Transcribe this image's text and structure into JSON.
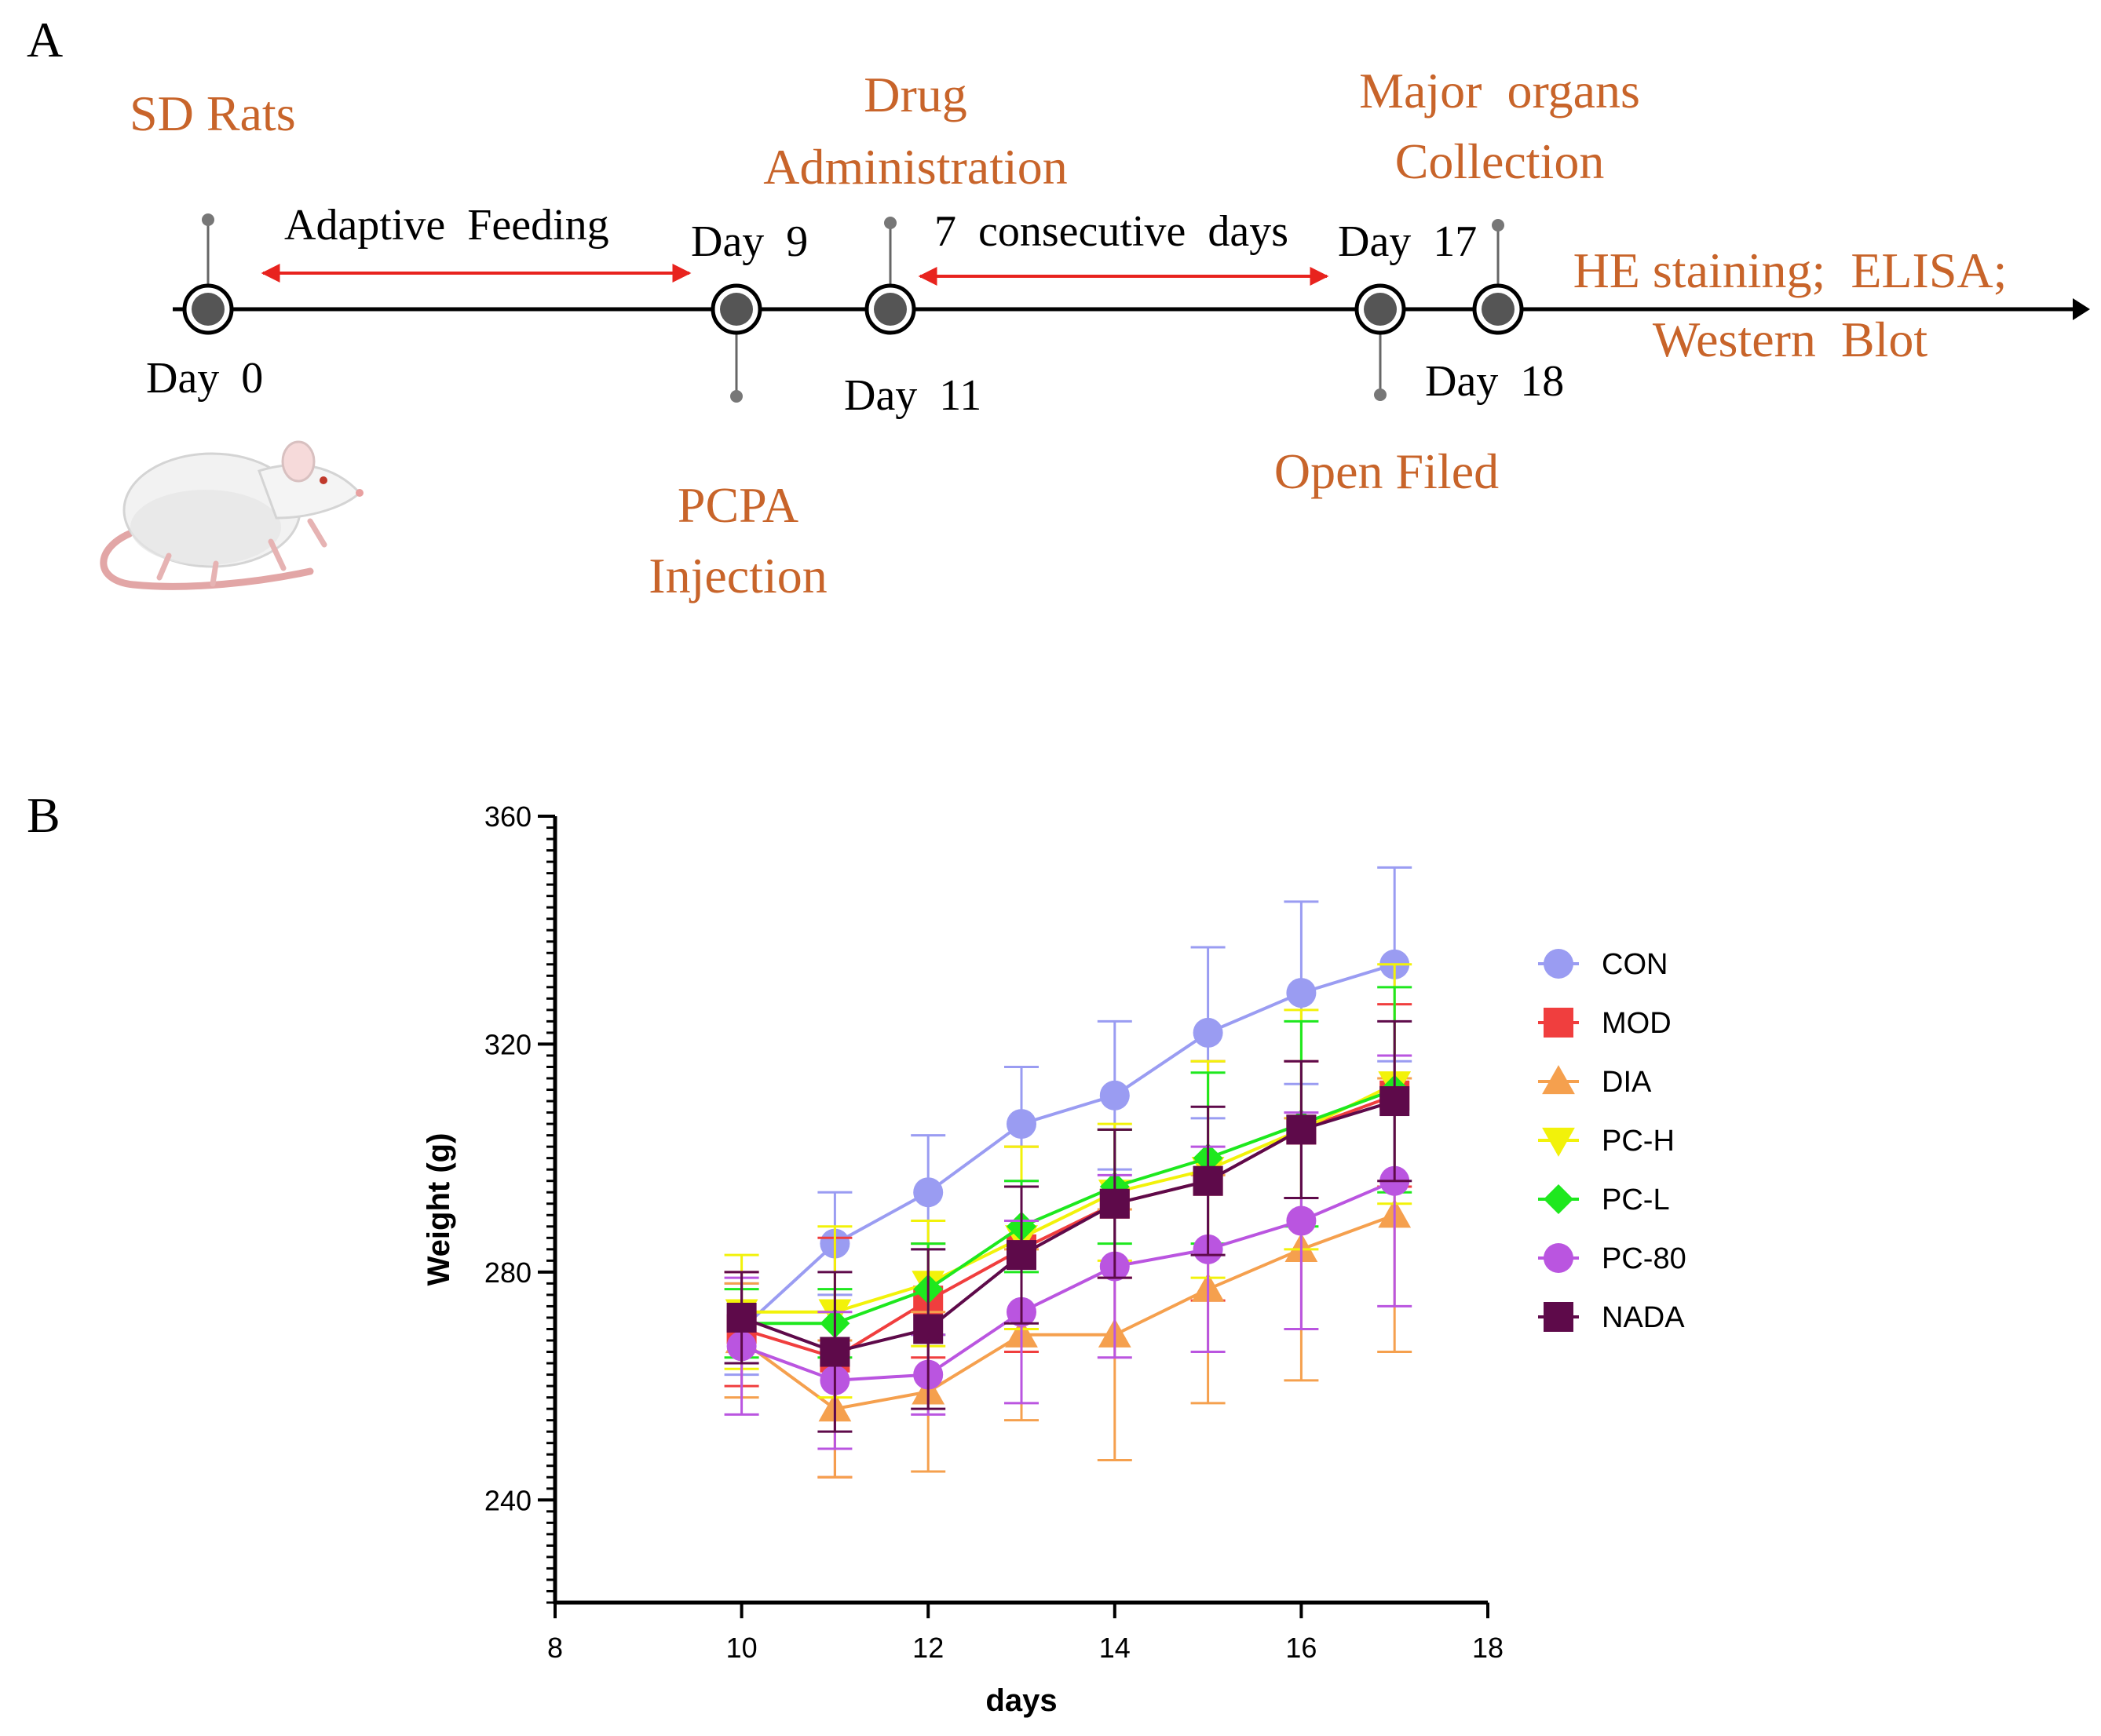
{
  "panel_labels": {
    "a": "A",
    "b": "B"
  },
  "timeline": {
    "sd_rats": "SD Rats",
    "adaptive_feeding": "Adaptive  Feeding",
    "drug_admin_line1": "Drug",
    "drug_admin_line2": "Administration",
    "consecutive": "7  consecutive  days",
    "major_organs_line1": "Major  organs",
    "major_organs_line2": "Collection",
    "day0": "Day  0",
    "day9": "Day  9",
    "day11": "Day  11",
    "day17": "Day  17",
    "day18": "Day  18",
    "pcpa_line1": "PCPA",
    "pcpa_line2": "Injection",
    "open_filed": "Open Filed",
    "assays_line1": "HE staining;  ELISA;",
    "assays_line2": "Western  Blot",
    "colors": {
      "orange_text": "#C8642A",
      "arrow": "#E8231E",
      "line": "#000000",
      "node": "#555555"
    }
  },
  "chart_data": {
    "type": "line",
    "xlabel": "days",
    "ylabel": "Weight (g)",
    "xlim": [
      8,
      18
    ],
    "ylim": [
      222,
      360
    ],
    "x_ticks": [
      8,
      10,
      12,
      14,
      16,
      18
    ],
    "y_ticks": [
      240,
      280,
      320,
      360
    ],
    "x": [
      10,
      11,
      12,
      13,
      14,
      15,
      16,
      17
    ],
    "legend_position": "right",
    "series": [
      {
        "name": "CON",
        "color": "#9A9CF2",
        "marker": "circle",
        "values": [
          270,
          285,
          294,
          306,
          311,
          322,
          329,
          334
        ],
        "err": [
          8,
          9,
          10,
          10,
          13,
          15,
          16,
          17
        ]
      },
      {
        "name": "MOD",
        "color": "#F03E3E",
        "marker": "square",
        "values": [
          270,
          265,
          275,
          284,
          292,
          296,
          305,
          311
        ],
        "err": [
          10,
          21,
          10,
          18,
          13,
          21,
          12,
          16
        ]
      },
      {
        "name": "DIA",
        "color": "#F5A04E",
        "marker": "triangle-up",
        "values": [
          268,
          256,
          259,
          269,
          269,
          277,
          284,
          290
        ],
        "err": [
          10,
          12,
          14,
          15,
          22,
          20,
          23,
          24
        ]
      },
      {
        "name": "PC-H",
        "color": "#F2F20A",
        "marker": "triangle-down",
        "values": [
          273,
          273,
          278,
          286,
          294,
          298,
          305,
          313
        ],
        "err": [
          10,
          15,
          11,
          16,
          12,
          19,
          21,
          21
        ]
      },
      {
        "name": "PC-L",
        "color": "#1EE81E",
        "marker": "diamond",
        "values": [
          271,
          271,
          277,
          288,
          295,
          300,
          306,
          312
        ],
        "err": [
          6,
          6,
          8,
          8,
          10,
          15,
          18,
          18
        ]
      },
      {
        "name": "PC-80",
        "color": "#BA55E0",
        "marker": "circle",
        "values": [
          267,
          261,
          262,
          273,
          281,
          284,
          289,
          296
        ],
        "err": [
          12,
          12,
          7,
          16,
          16,
          18,
          19,
          22
        ]
      },
      {
        "name": "NADA",
        "color": "#5E0A4A",
        "marker": "square",
        "values": [
          272,
          266,
          270,
          283,
          292,
          296,
          305,
          310
        ],
        "err": [
          8,
          14,
          14,
          12,
          13,
          13,
          12,
          14
        ]
      }
    ]
  }
}
